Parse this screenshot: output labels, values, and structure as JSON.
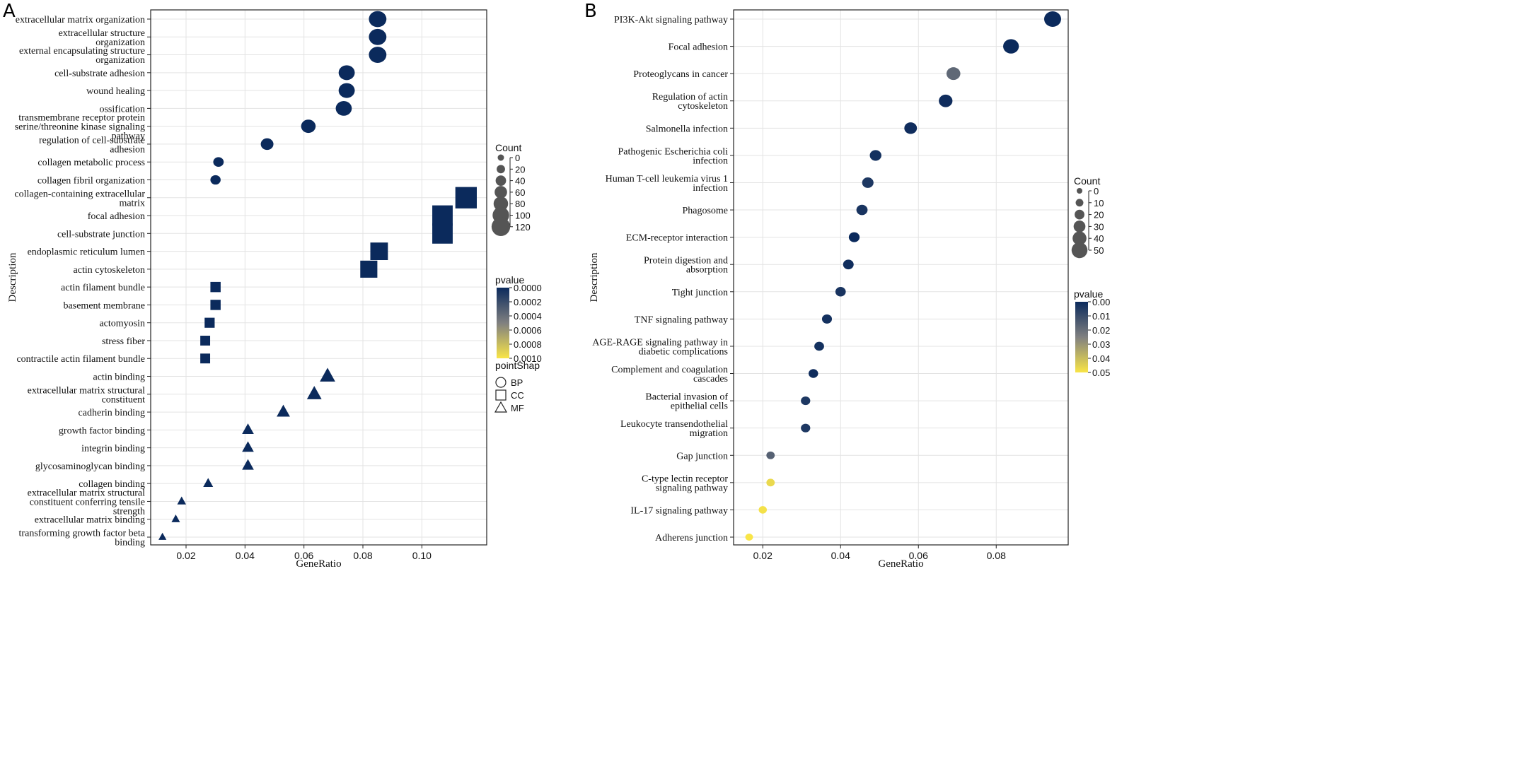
{
  "chart_data": [
    {
      "type": "scatter",
      "panel_label": "A",
      "xlabel": "GeneRatio",
      "ylabel": "Description",
      "xlim": [
        0.008,
        0.122
      ],
      "xticks": [
        "0.02",
        "0.04",
        "0.06",
        "0.08",
        "0.10"
      ],
      "xtick_values": [
        0.02,
        0.04,
        0.06,
        0.08,
        0.1
      ],
      "legend_count": {
        "title": "Count",
        "values": [
          0,
          20,
          40,
          60,
          80,
          100,
          120
        ]
      },
      "legend_pvalue": {
        "title": "pvalue",
        "ticks": [
          "0.0000",
          "0.0002",
          "0.0004",
          "0.0006",
          "0.0008",
          "0.0010"
        ],
        "range": [
          0,
          0.001
        ]
      },
      "legend_shape": {
        "title": "pointShap",
        "items": [
          {
            "shape": "circle",
            "label": "BP"
          },
          {
            "shape": "square",
            "label": "CC"
          },
          {
            "shape": "triangle",
            "label": "MF"
          }
        ]
      },
      "color_low": "#0b2a5c",
      "color_high": "#f9e547",
      "points": [
        {
          "label": "extracellular matrix organization",
          "x": 0.085,
          "count": 110,
          "shape": "circle",
          "pvalue": 0
        },
        {
          "label": "extracellular structure organization",
          "x": 0.085,
          "count": 110,
          "shape": "circle",
          "pvalue": 0
        },
        {
          "label": "external encapsulating structure organization",
          "x": 0.085,
          "count": 110,
          "shape": "circle",
          "pvalue": 0
        },
        {
          "label": "cell-substrate adhesion",
          "x": 0.0745,
          "count": 96,
          "shape": "circle",
          "pvalue": 0
        },
        {
          "label": "wound healing",
          "x": 0.0745,
          "count": 96,
          "shape": "circle",
          "pvalue": 0
        },
        {
          "label": "ossification",
          "x": 0.0735,
          "count": 95,
          "shape": "circle",
          "pvalue": 0
        },
        {
          "label": "transmembrane receptor protein serine/threonine kinase signaling pathway",
          "x": 0.0615,
          "count": 80,
          "shape": "circle",
          "pvalue": 0
        },
        {
          "label": "regulation of cell-substrate adhesion",
          "x": 0.0475,
          "count": 62,
          "shape": "circle",
          "pvalue": 0
        },
        {
          "label": "collagen metabolic process",
          "x": 0.031,
          "count": 40,
          "shape": "circle",
          "pvalue": 0
        },
        {
          "label": "collagen fibril organization",
          "x": 0.03,
          "count": 38,
          "shape": "circle",
          "pvalue": 0
        },
        {
          "label": "collagen-containing extracellular matrix",
          "x": 0.115,
          "count": 148,
          "shape": "square",
          "pvalue": 0
        },
        {
          "label": "focal adhesion",
          "x": 0.107,
          "count": 138,
          "shape": "square",
          "pvalue": 0
        },
        {
          "label": "cell-substrate junction",
          "x": 0.107,
          "count": 138,
          "shape": "square",
          "pvalue": 0
        },
        {
          "label": "endoplasmic reticulum lumen",
          "x": 0.0855,
          "count": 110,
          "shape": "square",
          "pvalue": 0
        },
        {
          "label": "actin cytoskeleton",
          "x": 0.082,
          "count": 105,
          "shape": "square",
          "pvalue": 0
        },
        {
          "label": "actin filament bundle",
          "x": 0.03,
          "count": 38,
          "shape": "square",
          "pvalue": 0
        },
        {
          "label": "basement membrane",
          "x": 0.03,
          "count": 38,
          "shape": "square",
          "pvalue": 0
        },
        {
          "label": "actomyosin",
          "x": 0.028,
          "count": 36,
          "shape": "square",
          "pvalue": 0
        },
        {
          "label": "stress fiber",
          "x": 0.0265,
          "count": 34,
          "shape": "square",
          "pvalue": 0
        },
        {
          "label": "contractile actin filament bundle",
          "x": 0.0265,
          "count": 34,
          "shape": "square",
          "pvalue": 0
        },
        {
          "label": "actin binding",
          "x": 0.068,
          "count": 88,
          "shape": "triangle",
          "pvalue": 0
        },
        {
          "label": "extracellular matrix structural constituent",
          "x": 0.0635,
          "count": 82,
          "shape": "triangle",
          "pvalue": 0
        },
        {
          "label": "cadherin binding",
          "x": 0.053,
          "count": 68,
          "shape": "triangle",
          "pvalue": 0
        },
        {
          "label": "growth factor binding",
          "x": 0.041,
          "count": 53,
          "shape": "triangle",
          "pvalue": 0
        },
        {
          "label": "integrin binding",
          "x": 0.041,
          "count": 53,
          "shape": "triangle",
          "pvalue": 0
        },
        {
          "label": "glycosaminoglycan binding",
          "x": 0.041,
          "count": 53,
          "shape": "triangle",
          "pvalue": 0
        },
        {
          "label": "collagen binding",
          "x": 0.0275,
          "count": 35,
          "shape": "triangle",
          "pvalue": 0
        },
        {
          "label": "extracellular matrix structural constituent conferring tensile strength",
          "x": 0.0185,
          "count": 24,
          "shape": "triangle",
          "pvalue": 0
        },
        {
          "label": "extracellular matrix binding",
          "x": 0.0165,
          "count": 21,
          "shape": "triangle",
          "pvalue": 0
        },
        {
          "label": "transforming growth factor beta binding",
          "x": 0.012,
          "count": 15,
          "shape": "triangle",
          "pvalue": 0
        }
      ]
    },
    {
      "type": "scatter",
      "panel_label": "B",
      "xlabel": "GeneRatio",
      "ylabel": "Description",
      "xlim": [
        0.0125,
        0.0985
      ],
      "xticks": [
        "0.02",
        "0.04",
        "0.06",
        "0.08"
      ],
      "xtick_values": [
        0.02,
        0.04,
        0.06,
        0.08
      ],
      "legend_count": {
        "title": "Count",
        "values": [
          0,
          10,
          20,
          30,
          40,
          50
        ]
      },
      "legend_pvalue": {
        "title": "pvalue",
        "ticks": [
          "0.00",
          "0.01",
          "0.02",
          "0.03",
          "0.04",
          "0.05"
        ],
        "range": [
          0,
          0.05
        ]
      },
      "color_low": "#0b2a5c",
      "color_high": "#f9e547",
      "points": [
        {
          "label": "PI3K-Akt signaling pathway",
          "x": 0.0945,
          "count": 55,
          "pvalue": 0.0
        },
        {
          "label": "Focal adhesion",
          "x": 0.0838,
          "count": 49,
          "pvalue": 0.0
        },
        {
          "label": "Proteoglycans in cancer",
          "x": 0.069,
          "count": 40,
          "pvalue": 0.018
        },
        {
          "label": "Regulation of actin cytoskeleton",
          "x": 0.067,
          "count": 39,
          "pvalue": 0.001
        },
        {
          "label": "Salmonella infection",
          "x": 0.058,
          "count": 34,
          "pvalue": 0.001
        },
        {
          "label": "Pathogenic Escherichia coli infection",
          "x": 0.049,
          "count": 29,
          "pvalue": 0.002
        },
        {
          "label": "Human T-cell leukemia virus 1 infection",
          "x": 0.047,
          "count": 28,
          "pvalue": 0.004
        },
        {
          "label": "Phagosome",
          "x": 0.0455,
          "count": 27,
          "pvalue": 0.003
        },
        {
          "label": "ECM-receptor interaction",
          "x": 0.0435,
          "count": 25,
          "pvalue": 0.0
        },
        {
          "label": "Protein digestion and absorption",
          "x": 0.042,
          "count": 24,
          "pvalue": 0.001
        },
        {
          "label": "Tight junction",
          "x": 0.04,
          "count": 23,
          "pvalue": 0.003
        },
        {
          "label": "TNF signaling pathway",
          "x": 0.0365,
          "count": 21,
          "pvalue": 0.002
        },
        {
          "label": "AGE-RAGE signaling pathway in diabetic complications",
          "x": 0.0345,
          "count": 20,
          "pvalue": 0.002
        },
        {
          "label": "Complement and coagulation cascades",
          "x": 0.033,
          "count": 19,
          "pvalue": 0.001
        },
        {
          "label": "Bacterial invasion of epithelial cells",
          "x": 0.031,
          "count": 18,
          "pvalue": 0.004
        },
        {
          "label": "Leukocyte transendothelial migration",
          "x": 0.031,
          "count": 18,
          "pvalue": 0.004
        },
        {
          "label": "Gap junction",
          "x": 0.022,
          "count": 13,
          "pvalue": 0.016
        },
        {
          "label": "C-type lectin receptor signaling pathway",
          "x": 0.022,
          "count": 13,
          "pvalue": 0.047
        },
        {
          "label": "IL-17 signaling pathway",
          "x": 0.02,
          "count": 12,
          "pvalue": 0.049
        },
        {
          "label": "Adherens junction",
          "x": 0.0165,
          "count": 10,
          "pvalue": 0.05
        }
      ]
    }
  ]
}
